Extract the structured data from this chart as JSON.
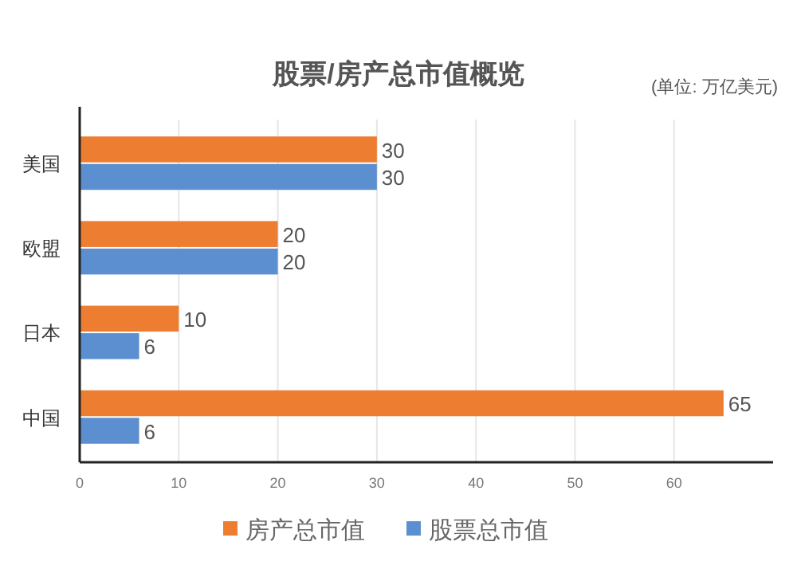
{
  "chart_data": {
    "type": "bar",
    "orientation": "horizontal",
    "title": "股票/房产总市值概览",
    "annotations": [
      "(单位: 万亿美元)"
    ],
    "categories": [
      "美国",
      "欧盟",
      "日本",
      "中国"
    ],
    "series": [
      {
        "name": "房产总市值",
        "color": "#ed7d31",
        "values": [
          30,
          20,
          10,
          65
        ]
      },
      {
        "name": "股票总市值",
        "color": "#5b8fd0",
        "values": [
          30,
          20,
          6,
          6
        ]
      }
    ],
    "xlim": [
      0,
      70
    ],
    "xticks": [
      0,
      10,
      20,
      30,
      40,
      50,
      60
    ],
    "grid": "x",
    "legend": "bottom",
    "data_labels": true
  }
}
